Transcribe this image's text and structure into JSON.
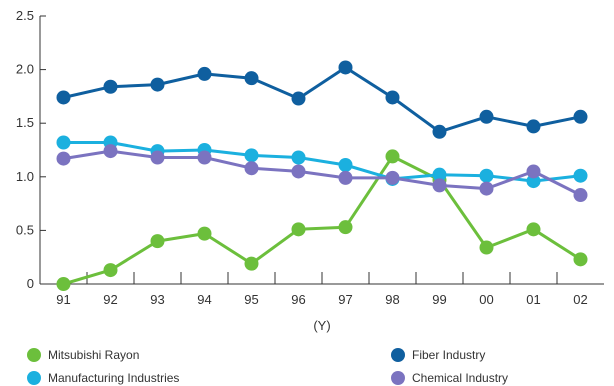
{
  "chart_data": {
    "type": "line",
    "title": "",
    "xlabel": "(Y)",
    "ylabel": "",
    "categories": [
      "91",
      "92",
      "93",
      "94",
      "95",
      "96",
      "97",
      "98",
      "99",
      "00",
      "01",
      "02"
    ],
    "ylim": [
      0,
      2.5
    ],
    "yticks": [
      "0",
      "0.5",
      "1.0",
      "1.5",
      "2.0",
      "2.5"
    ],
    "ytick_values": [
      0,
      0.5,
      1.0,
      1.5,
      2.0,
      2.5
    ],
    "grid": false,
    "legend_position": "bottom",
    "series": [
      {
        "name": "Mitsubishi Rayon",
        "color": "#6cbf3c",
        "values": [
          0.0,
          0.13,
          0.4,
          0.47,
          0.19,
          0.51,
          0.53,
          1.19,
          0.97,
          0.34,
          0.51,
          0.23
        ]
      },
      {
        "name": "Fiber Industry",
        "color": "#0f5f9f",
        "values": [
          1.74,
          1.84,
          1.86,
          1.96,
          1.92,
          1.73,
          2.02,
          1.74,
          1.42,
          1.56,
          1.47,
          1.56
        ]
      },
      {
        "name": "Manufacturing Industries",
        "color": "#1bb0df",
        "values": [
          1.32,
          1.32,
          1.24,
          1.25,
          1.2,
          1.18,
          1.11,
          0.98,
          1.02,
          1.01,
          0.96,
          1.01
        ]
      },
      {
        "name": "Chemical Industry",
        "color": "#7b73c0",
        "values": [
          1.17,
          1.24,
          1.18,
          1.18,
          1.08,
          1.05,
          0.99,
          0.99,
          0.92,
          0.89,
          1.05,
          0.83
        ]
      }
    ]
  }
}
